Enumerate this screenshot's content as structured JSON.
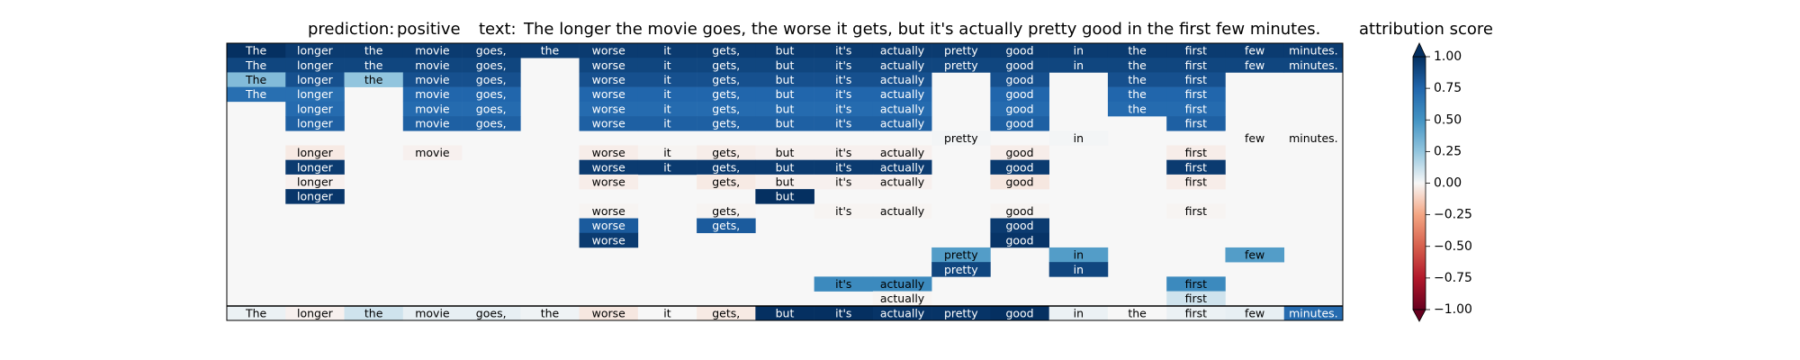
{
  "header": {
    "prediction_label": "prediction:",
    "prediction_value": "positive",
    "text_label": "text:",
    "text_value": "The longer the movie goes, the worse it gets, but it's actually pretty good in the first few minutes."
  },
  "chart_data": {
    "type": "heatmap",
    "columns": [
      "The",
      "longer",
      "the",
      "movie",
      "goes,",
      "the",
      "worse",
      "it",
      "gets,",
      "but",
      "it's",
      "actually",
      "pretty",
      "good",
      "in",
      "the",
      "first",
      "few",
      "minutes."
    ],
    "rows": [
      [
        1.0,
        0.95,
        0.95,
        0.95,
        0.95,
        0.95,
        0.95,
        0.95,
        0.95,
        0.95,
        0.95,
        0.95,
        0.95,
        0.95,
        0.95,
        0.95,
        0.95,
        0.95,
        0.95
      ],
      [
        0.9,
        0.9,
        0.9,
        0.9,
        0.9,
        null,
        0.9,
        0.9,
        0.9,
        0.9,
        0.9,
        0.9,
        0.9,
        0.9,
        0.9,
        0.9,
        0.9,
        0.9,
        0.9
      ],
      [
        0.3,
        0.85,
        0.25,
        0.85,
        0.85,
        null,
        0.85,
        0.85,
        0.85,
        0.85,
        0.85,
        0.85,
        null,
        0.85,
        null,
        0.85,
        0.85,
        null,
        null
      ],
      [
        0.7,
        0.7,
        null,
        0.75,
        0.75,
        null,
        0.75,
        0.75,
        0.75,
        0.75,
        0.75,
        0.75,
        null,
        0.75,
        null,
        0.75,
        0.75,
        null,
        null
      ],
      [
        null,
        0.72,
        null,
        0.72,
        0.72,
        null,
        0.72,
        0.72,
        0.72,
        0.72,
        0.72,
        0.72,
        null,
        0.72,
        null,
        0.72,
        0.72,
        null,
        null
      ],
      [
        null,
        0.78,
        null,
        0.78,
        0.78,
        null,
        0.78,
        0.78,
        0.78,
        0.78,
        0.78,
        0.78,
        null,
        0.78,
        null,
        null,
        0.78,
        null,
        null
      ],
      [
        null,
        null,
        null,
        null,
        null,
        null,
        null,
        null,
        null,
        null,
        null,
        null,
        0.01,
        null,
        0.01,
        null,
        null,
        0.0,
        0.0
      ],
      [
        null,
        -0.04,
        null,
        -0.02,
        null,
        null,
        -0.03,
        -0.01,
        -0.03,
        -0.02,
        -0.02,
        -0.02,
        null,
        -0.03,
        null,
        null,
        -0.03,
        null,
        null
      ],
      [
        null,
        0.95,
        null,
        null,
        null,
        null,
        0.95,
        0.95,
        0.95,
        0.95,
        0.95,
        0.95,
        null,
        0.95,
        null,
        null,
        0.95,
        null,
        null
      ],
      [
        null,
        -0.02,
        null,
        null,
        null,
        null,
        -0.03,
        null,
        -0.04,
        -0.02,
        -0.02,
        -0.02,
        null,
        -0.05,
        null,
        null,
        -0.03,
        null,
        null
      ],
      [
        null,
        0.97,
        null,
        null,
        null,
        null,
        null,
        null,
        null,
        1.0,
        null,
        null,
        null,
        null,
        null,
        null,
        null,
        null,
        null
      ],
      [
        null,
        null,
        null,
        null,
        null,
        null,
        -0.01,
        null,
        -0.01,
        null,
        -0.01,
        -0.01,
        null,
        -0.01,
        null,
        null,
        -0.01,
        null,
        null
      ],
      [
        null,
        null,
        null,
        null,
        null,
        null,
        0.8,
        null,
        0.8,
        null,
        null,
        null,
        null,
        0.95,
        null,
        null,
        null,
        null,
        null
      ],
      [
        null,
        null,
        null,
        null,
        null,
        null,
        0.95,
        null,
        null,
        null,
        null,
        null,
        null,
        0.98,
        null,
        null,
        null,
        null,
        null
      ],
      [
        null,
        null,
        null,
        null,
        null,
        null,
        null,
        null,
        null,
        null,
        null,
        null,
        0.45,
        null,
        0.45,
        null,
        null,
        0.45,
        null
      ],
      [
        null,
        null,
        null,
        null,
        null,
        null,
        null,
        null,
        null,
        null,
        null,
        null,
        0.9,
        null,
        0.9,
        null,
        null,
        null,
        null
      ],
      [
        null,
        null,
        null,
        null,
        null,
        null,
        null,
        null,
        null,
        null,
        0.55,
        0.55,
        null,
        null,
        null,
        null,
        0.55,
        null,
        null
      ],
      [
        null,
        null,
        null,
        null,
        null,
        null,
        null,
        null,
        null,
        null,
        null,
        -0.01,
        null,
        null,
        null,
        null,
        0.1,
        null,
        null
      ],
      [
        0.03,
        -0.02,
        0.1,
        0.04,
        0.04,
        0.02,
        -0.05,
        0.0,
        -0.04,
        1.0,
        1.0,
        0.98,
        0.98,
        1.0,
        0.03,
        0.0,
        0.03,
        0.04,
        0.72
      ]
    ],
    "colorbar": {
      "title": "attribution score",
      "ticks": [
        "1.00",
        "0.75",
        "0.50",
        "0.25",
        "0.00",
        "−0.25",
        "−0.50",
        "−0.75",
        "−1.00"
      ],
      "range": [
        -1,
        1
      ],
      "colormap": "RdBu"
    }
  }
}
